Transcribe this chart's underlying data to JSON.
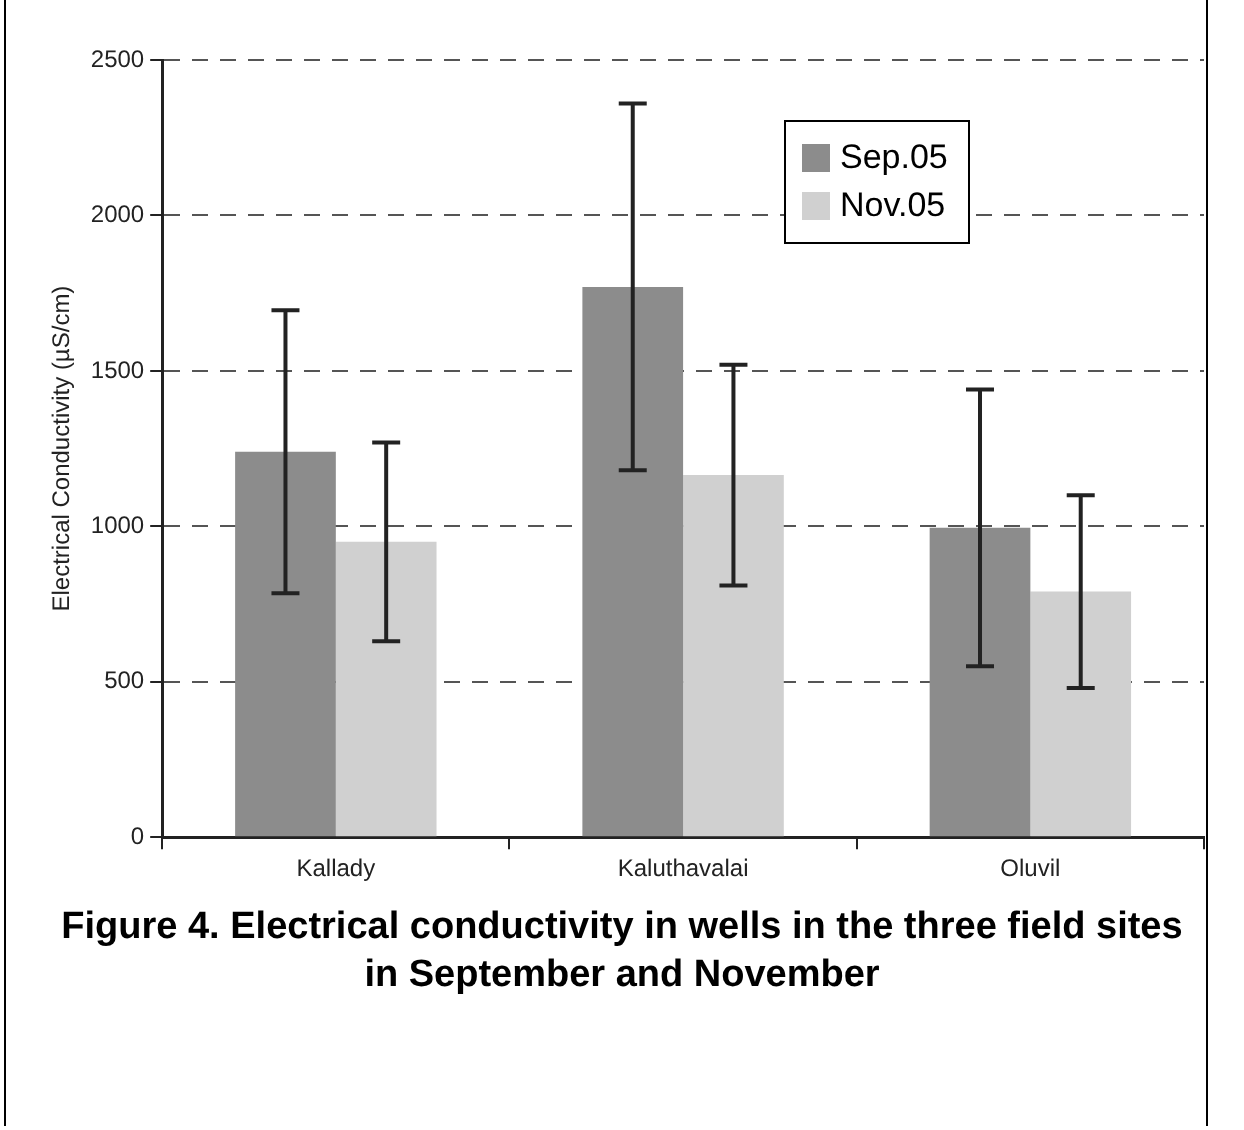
{
  "chart_data": {
    "type": "bar",
    "ylabel": "Electrical Conductivity (µS/cm)",
    "categories": [
      "Kallady",
      "Kaluthavalai",
      "Oluvil"
    ],
    "series": [
      {
        "name": "Sep.05",
        "color": "#8c8c8c",
        "values": [
          1240,
          1770,
          995
        ],
        "errors": [
          455,
          590,
          445
        ]
      },
      {
        "name": "Nov.05",
        "color": "#d0d0d0",
        "values": [
          950,
          1165,
          790
        ],
        "errors": [
          320,
          355,
          310
        ]
      }
    ],
    "ylim": [
      0,
      2500
    ],
    "yticks": [
      0,
      500,
      1000,
      1500,
      2000,
      2500
    ],
    "grid": "y",
    "legend": "top right",
    "annotations": [
      "Figure 4. Electrical conductivity in wells in the three field sites in September and November"
    ]
  }
}
